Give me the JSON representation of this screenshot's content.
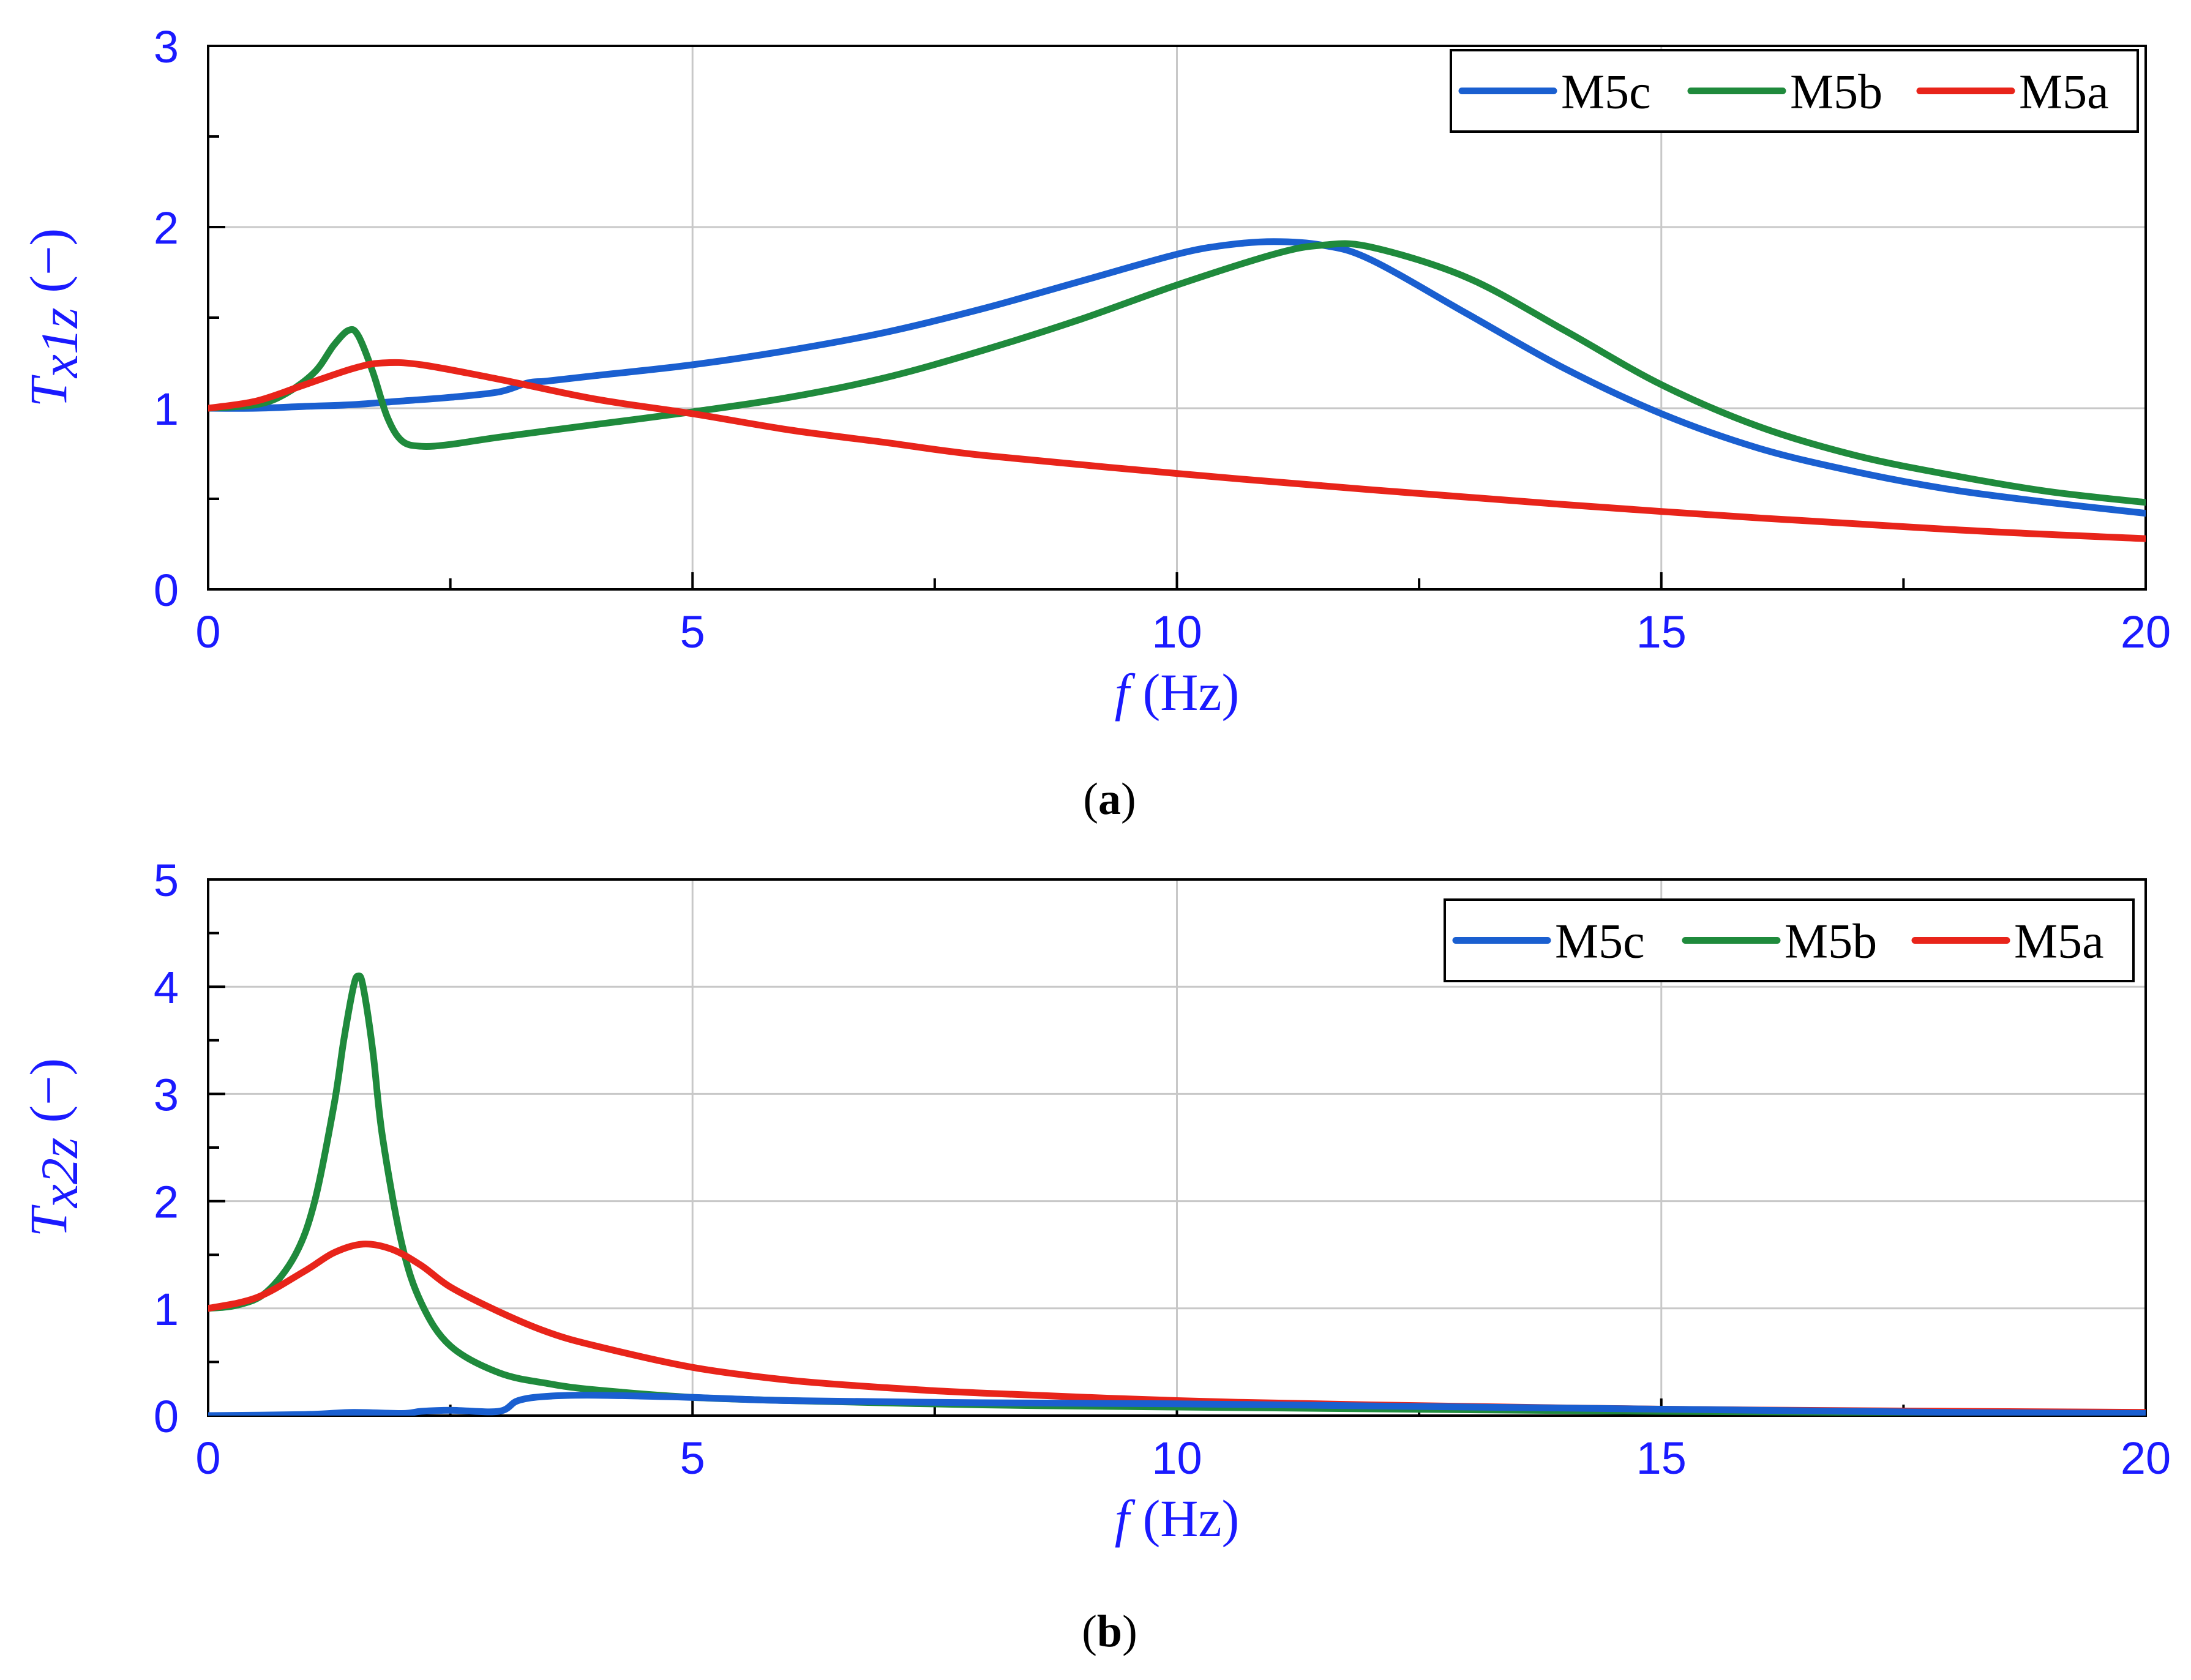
{
  "chart_data": [
    {
      "type": "line",
      "caption_letter": "a",
      "xlabel": {
        "symbol": "f",
        "unit": "(Hz)"
      },
      "ylabel": {
        "base": "T",
        "sub": "x1z",
        "unit": "(−)"
      },
      "xlim": [
        0,
        20
      ],
      "ylim": [
        0,
        3
      ],
      "xticks": [
        "0",
        "5",
        "10",
        "15",
        "20"
      ],
      "yticks": [
        "0",
        "1",
        "2",
        "3"
      ],
      "grid": true,
      "legend_position": "top-right",
      "legend": [
        "M5c",
        "M5b",
        "M5a"
      ],
      "series": [
        {
          "name": "M5c",
          "color": "#1a5fd0",
          "x": [
            0,
            0.5,
            1,
            1.5,
            2,
            2.5,
            3,
            3.3,
            3.5,
            4,
            5,
            6,
            7,
            8,
            9,
            10,
            10.5,
            11,
            11.5,
            12,
            13,
            14,
            15,
            16,
            17,
            18,
            19,
            20
          ],
          "y": [
            1.0,
            1.0,
            1.01,
            1.02,
            1.04,
            1.06,
            1.09,
            1.14,
            1.15,
            1.18,
            1.24,
            1.32,
            1.42,
            1.55,
            1.7,
            1.85,
            1.9,
            1.92,
            1.9,
            1.82,
            1.52,
            1.22,
            0.97,
            0.78,
            0.65,
            0.55,
            0.48,
            0.42
          ]
        },
        {
          "name": "M5b",
          "color": "#1f8a3c",
          "x": [
            0,
            0.5,
            0.8,
            1.1,
            1.3,
            1.45,
            1.55,
            1.7,
            1.85,
            2.0,
            2.2,
            2.5,
            3,
            4,
            5,
            6,
            7,
            8,
            9,
            10,
            11,
            11.5,
            12,
            13,
            14,
            15,
            16,
            17,
            18,
            19,
            20
          ],
          "y": [
            1.0,
            1.02,
            1.08,
            1.2,
            1.35,
            1.43,
            1.4,
            1.2,
            0.95,
            0.82,
            0.79,
            0.8,
            0.84,
            0.91,
            0.98,
            1.06,
            1.17,
            1.32,
            1.49,
            1.68,
            1.85,
            1.9,
            1.89,
            1.72,
            1.43,
            1.13,
            0.9,
            0.74,
            0.63,
            0.54,
            0.48
          ]
        },
        {
          "name": "M5a",
          "color": "#e8241a",
          "x": [
            0,
            0.5,
            1,
            1.5,
            1.8,
            2.2,
            3,
            4,
            5,
            6,
            7,
            8,
            10,
            12,
            15,
            18,
            20
          ],
          "y": [
            1.0,
            1.04,
            1.13,
            1.22,
            1.25,
            1.24,
            1.16,
            1.05,
            0.97,
            0.88,
            0.81,
            0.74,
            0.64,
            0.55,
            0.43,
            0.33,
            0.28
          ]
        }
      ]
    },
    {
      "type": "line",
      "caption_letter": "b",
      "xlabel": {
        "symbol": "f",
        "unit": "(Hz)"
      },
      "ylabel": {
        "base": "T",
        "sub": "x2z",
        "unit": "(−)"
      },
      "xlim": [
        0,
        20
      ],
      "ylim": [
        0,
        5
      ],
      "xticks": [
        "0",
        "5",
        "10",
        "15",
        "20"
      ],
      "yticks": [
        "0",
        "1",
        "2",
        "3",
        "4",
        "5"
      ],
      "grid": true,
      "legend_position": "top-right",
      "legend": [
        "M5c",
        "M5b",
        "M5a"
      ],
      "series": [
        {
          "name": "M5b",
          "color": "#1f8a3c",
          "x": [
            0,
            0.3,
            0.6,
            0.9,
            1.1,
            1.3,
            1.4,
            1.5,
            1.55,
            1.6,
            1.7,
            1.8,
            2.0,
            2.2,
            2.5,
            3,
            3.5,
            4,
            5,
            6,
            8,
            10,
            15,
            20
          ],
          "y": [
            1.0,
            1.03,
            1.15,
            1.5,
            2.0,
            2.9,
            3.5,
            4.0,
            4.1,
            4.0,
            3.4,
            2.6,
            1.6,
            1.05,
            0.65,
            0.4,
            0.3,
            0.24,
            0.17,
            0.14,
            0.1,
            0.08,
            0.04,
            0.02
          ]
        },
        {
          "name": "M5a",
          "color": "#e8241a",
          "x": [
            0,
            0.5,
            1,
            1.3,
            1.6,
            1.9,
            2.2,
            2.5,
            3,
            3.5,
            4,
            5,
            6,
            7,
            8,
            10,
            12,
            15,
            18,
            20
          ],
          "y": [
            1.0,
            1.1,
            1.35,
            1.52,
            1.6,
            1.55,
            1.4,
            1.2,
            0.97,
            0.78,
            0.65,
            0.45,
            0.33,
            0.26,
            0.21,
            0.14,
            0.1,
            0.06,
            0.04,
            0.03
          ]
        },
        {
          "name": "M5c",
          "color": "#1a5fd0",
          "x": [
            0,
            1,
            1.5,
            2,
            2.2,
            2.5,
            3,
            3.2,
            3.5,
            4,
            5,
            6,
            8,
            10,
            12,
            15,
            18,
            20
          ],
          "y": [
            0.0,
            0.01,
            0.03,
            0.02,
            0.04,
            0.05,
            0.04,
            0.14,
            0.18,
            0.19,
            0.17,
            0.14,
            0.12,
            0.11,
            0.09,
            0.06,
            0.03,
            0.02
          ]
        }
      ]
    }
  ]
}
